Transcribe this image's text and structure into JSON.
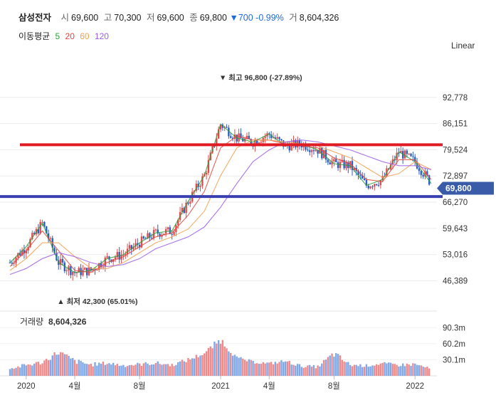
{
  "header": {
    "stock_name": "삼성전자",
    "open_label": "시",
    "open": "69,600",
    "high_label": "고",
    "high": "70,300",
    "low_label": "저",
    "low": "69,600",
    "close_label": "종",
    "close": "69,800",
    "change_arrow": "▼",
    "change": "700",
    "change_pct": "-0.99%",
    "volume_label": "거",
    "volume": "8,604,326"
  },
  "ma_legend": {
    "label": "이동평균",
    "periods": [
      {
        "text": "5",
        "color": "#2e9c3a"
      },
      {
        "text": "20",
        "color": "#e0453a"
      },
      {
        "text": "60",
        "color": "#f0a050"
      },
      {
        "text": "120",
        "color": "#9b5de5"
      }
    ]
  },
  "scale_button": "Linear",
  "current_price_badge": "69,800",
  "max_annotation": "▼ 최고 96,800 (-27.89%)",
  "min_annotation": "▲ 최저 42,300 (65.01%)",
  "volume_title": "거래량",
  "volume_value": "8,604,326",
  "chart_data": [
    {
      "type": "line",
      "title": "",
      "x_tick_labels": [
        "2020",
        "4월",
        "8월",
        "2021",
        "4월",
        "8월",
        "2022"
      ],
      "y_tick_labels": [
        "92,778",
        "86,151",
        "79,524",
        "72,897",
        "66,270",
        "59,643",
        "53,016",
        "46,389"
      ],
      "ylim": [
        40000,
        101200
      ],
      "x": [
        "2019-12",
        "2020-01",
        "2020-02",
        "2020-03",
        "2020-04",
        "2020-05",
        "2020-06",
        "2020-07",
        "2020-08",
        "2020-09",
        "2020-10",
        "2020-11",
        "2020-12",
        "2021-01",
        "2021-02",
        "2021-03",
        "2021-04",
        "2021-05",
        "2021-06",
        "2021-07",
        "2021-08",
        "2021-09",
        "2021-10",
        "2021-11",
        "2021-12",
        "2022-01",
        "2022-02"
      ],
      "series": [
        {
          "name": "5",
          "color": "#2e9c3a",
          "values": [
            51000,
            55000,
            61000,
            51000,
            48500,
            49000,
            52000,
            53000,
            56000,
            58500,
            59000,
            66500,
            73000,
            86000,
            82500,
            81500,
            83500,
            80500,
            81000,
            79500,
            76000,
            75500,
            70500,
            72000,
            79000,
            76500,
            71000
          ]
        },
        {
          "name": "20",
          "color": "#e0453a",
          "values": [
            50000,
            54000,
            59000,
            54000,
            49000,
            48500,
            51000,
            52500,
            55000,
            57500,
            58500,
            63000,
            69000,
            80000,
            83000,
            82000,
            82000,
            81000,
            80500,
            80000,
            77500,
            76000,
            72000,
            71500,
            77000,
            77000,
            72000
          ]
        },
        {
          "name": "60",
          "color": "#f0a050",
          "values": [
            49000,
            52000,
            56000,
            56000,
            52500,
            49500,
            49500,
            51000,
            53500,
            56000,
            57500,
            59500,
            64000,
            73000,
            80000,
            82000,
            82000,
            81500,
            81000,
            80500,
            79000,
            77500,
            75000,
            72500,
            73500,
            76500,
            74500
          ]
        },
        {
          "name": "120",
          "color": "#9b5de5",
          "values": [
            48000,
            49500,
            52000,
            53500,
            52500,
            51000,
            50000,
            50500,
            52000,
            54500,
            56000,
            57500,
            60000,
            65000,
            71000,
            76500,
            79500,
            81500,
            82000,
            81500,
            80500,
            79500,
            78000,
            76500,
            75500,
            75500,
            74500
          ]
        }
      ],
      "max": {
        "date": "2021-01",
        "value": 96800,
        "change_pct": -27.89
      },
      "min": {
        "date": "2020-03",
        "value": 42300,
        "change_pct": 65.01
      },
      "current": 69800,
      "horizontal_lines": [
        {
          "value": 80800,
          "color": "#e01b24"
        },
        {
          "value": 67700,
          "color": "#3a3fb0"
        }
      ],
      "grid": true
    },
    {
      "type": "bar",
      "title": "",
      "y_tick_labels": [
        "90.3m",
        "60.2m",
        "30.1m"
      ],
      "ylim": [
        0,
        96000000
      ],
      "x": [
        "2019-12",
        "2020-01",
        "2020-02",
        "2020-03",
        "2020-04",
        "2020-05",
        "2020-06",
        "2020-07",
        "2020-08",
        "2020-09",
        "2020-10",
        "2020-11",
        "2020-12",
        "2021-01",
        "2021-02",
        "2021-03",
        "2021-04",
        "2021-05",
        "2021-06",
        "2021-07",
        "2021-08",
        "2021-09",
        "2021-10",
        "2021-11",
        "2021-12",
        "2022-01",
        "2022-02"
      ],
      "series": [
        {
          "name": "",
          "values": [
            11000000,
            16000000,
            21000000,
            38000000,
            22000000,
            17000000,
            20000000,
            16000000,
            18000000,
            20000000,
            17000000,
            26000000,
            38000000,
            60000000,
            30000000,
            23000000,
            20000000,
            24000000,
            15000000,
            14000000,
            34000000,
            17000000,
            16000000,
            20000000,
            17000000,
            18000000,
            11000000
          ]
        },
        {
          "name": "",
          "values": [
            18000000,
            30000000,
            35000000,
            60000000,
            40000000,
            30000000,
            33000000,
            28000000,
            30000000,
            33000000,
            28000000,
            40000000,
            52000000,
            85000000,
            42000000,
            33000000,
            30000000,
            36000000,
            25000000,
            24000000,
            58000000,
            28000000,
            26000000,
            30000000,
            28000000,
            30000000,
            17000000
          ]
        }
      ],
      "grid": true
    }
  ]
}
